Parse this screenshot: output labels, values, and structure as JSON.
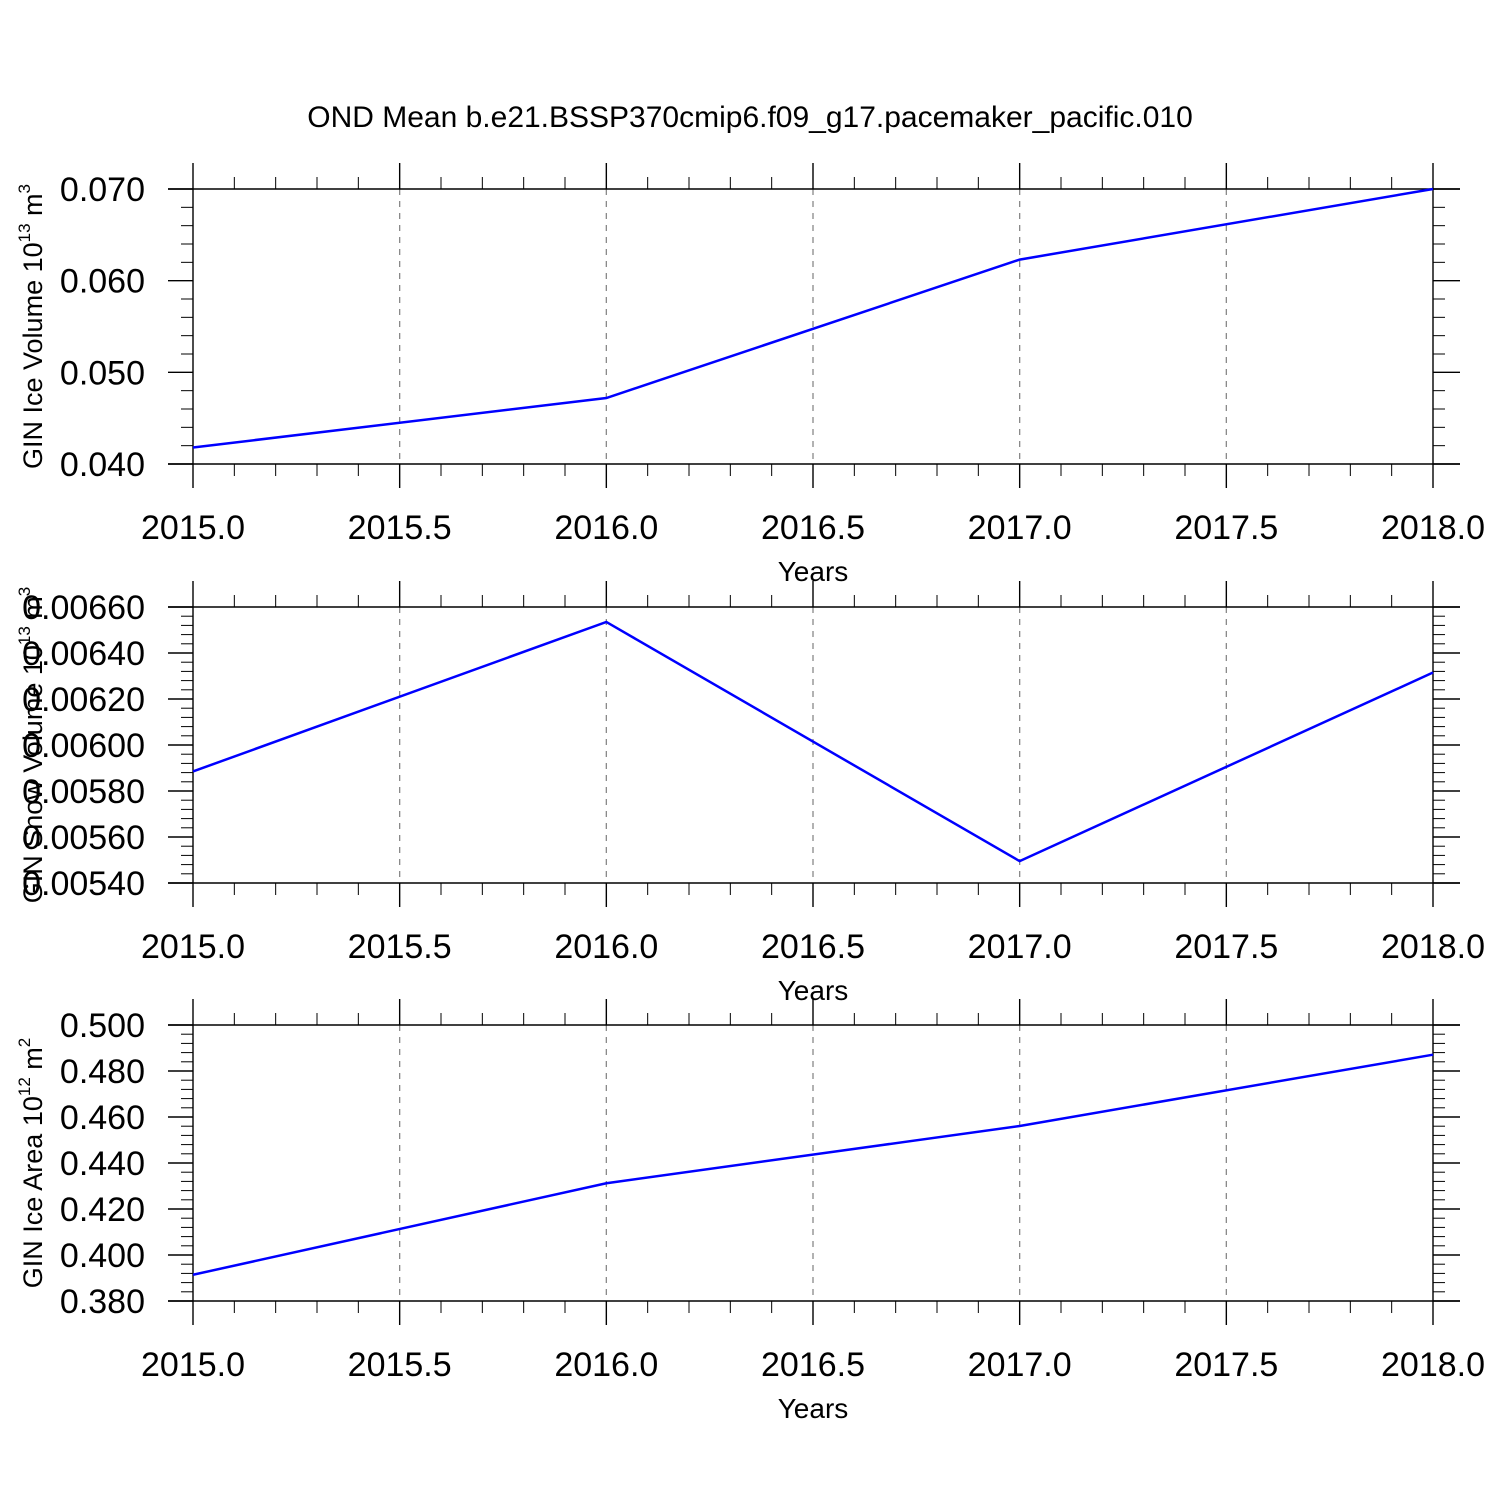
{
  "title": "OND Mean b.e21.BSSP370cmip6.f09_g17.pacemaker_pacific.010",
  "line_color": "#0000ff",
  "chart_data": [
    {
      "type": "line",
      "xlabel": "Years",
      "ylabel": {
        "text": "GIN Ice Volume 10",
        "exp": "13",
        "unit": " m",
        "unit_exp": "3"
      },
      "xlim": [
        2015.0,
        2018.0
      ],
      "ylim": [
        0.04,
        0.07
      ],
      "xticks": [
        "2015.0",
        "2015.5",
        "2016.0",
        "2016.5",
        "2017.0",
        "2017.5",
        "2018.0"
      ],
      "yticks": [
        "0.040",
        "0.050",
        "0.060",
        "0.070"
      ],
      "x": [
        2015,
        2016,
        2017,
        2018
      ],
      "y": [
        0.0418,
        0.0472,
        0.0623,
        0.07
      ]
    },
    {
      "type": "line",
      "xlabel": "Years",
      "ylabel": {
        "text": "GIN Snow Volume 10",
        "exp": "13",
        "unit": " m",
        "unit_exp": "3"
      },
      "xlim": [
        2015.0,
        2018.0
      ],
      "ylim": [
        0.0054,
        0.0066
      ],
      "xticks": [
        "2015.0",
        "2015.5",
        "2016.0",
        "2016.5",
        "2017.0",
        "2017.5",
        "2018.0"
      ],
      "yticks": [
        "0.00540",
        "0.00560",
        "0.00580",
        "0.00600",
        "0.00620",
        "0.00640",
        "0.00660"
      ],
      "x": [
        2015,
        2016,
        2017,
        2018
      ],
      "y": [
        0.005885,
        0.006535,
        0.005495,
        0.006315
      ]
    },
    {
      "type": "line",
      "xlabel": "Years",
      "ylabel": {
        "text": "GIN Ice Area 10",
        "exp": "12",
        "unit": " m",
        "unit_exp": "2"
      },
      "xlim": [
        2015.0,
        2018.0
      ],
      "ylim": [
        0.38,
        0.5
      ],
      "xticks": [
        "2015.0",
        "2015.5",
        "2016.0",
        "2016.5",
        "2017.0",
        "2017.5",
        "2018.0"
      ],
      "yticks": [
        "0.380",
        "0.400",
        "0.420",
        "0.440",
        "0.460",
        "0.480",
        "0.500"
      ],
      "x": [
        2015,
        2016,
        2017,
        2018
      ],
      "y": [
        0.3914,
        0.4312,
        0.4561,
        0.4871
      ]
    }
  ]
}
